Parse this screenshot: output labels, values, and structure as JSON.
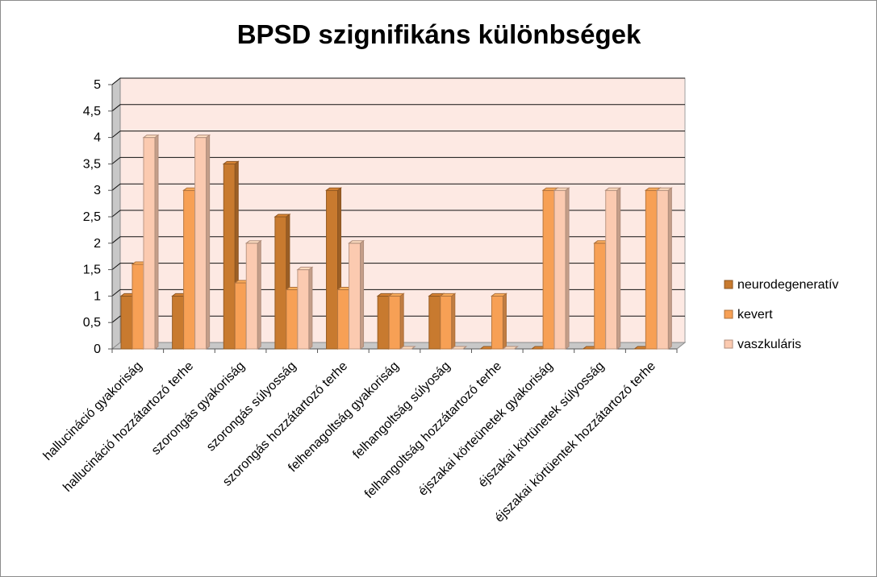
{
  "chart_data": {
    "type": "bar",
    "title": "BPSD szignifikáns különbségek",
    "ylim": [
      0,
      5
    ],
    "y_ticks": [
      "0",
      "0,5",
      "1",
      "1,5",
      "2",
      "2,5",
      "3",
      "3,5",
      "4",
      "4,5",
      "5"
    ],
    "grid": true,
    "legend_position": "right",
    "categories": [
      "hallucináció gyakoriság",
      "hallucináció hozzátartozó terhe",
      "szorongás gyakoriság",
      "szorongás súlyosság",
      "szorongás hozzátartozó terhe",
      "felhenagoltság gyakoriság",
      "felhangoltság súlyoság",
      "felhangoltság hozzátartozó terhe",
      "éjszakai körteünetek gyakoriság",
      "éjszakai körtünetek súlyosság",
      "éjszakai körtüentek hozzátartozó terhe"
    ],
    "series": [
      {
        "name": "neurodegeneratív",
        "color": "#c87a2f",
        "values": [
          1,
          1,
          3.5,
          2.5,
          3,
          1,
          1,
          0,
          0,
          0,
          0
        ]
      },
      {
        "name": "kevert",
        "color": "#f7a055",
        "values": [
          1.6,
          3,
          1.25,
          1.12,
          1.12,
          1,
          1,
          1,
          3,
          2,
          3
        ]
      },
      {
        "name": "vaszkuláris",
        "color": "#fbcab0",
        "values": [
          4,
          4,
          2,
          1.5,
          2,
          0,
          0,
          0,
          3,
          3,
          3
        ]
      }
    ]
  }
}
